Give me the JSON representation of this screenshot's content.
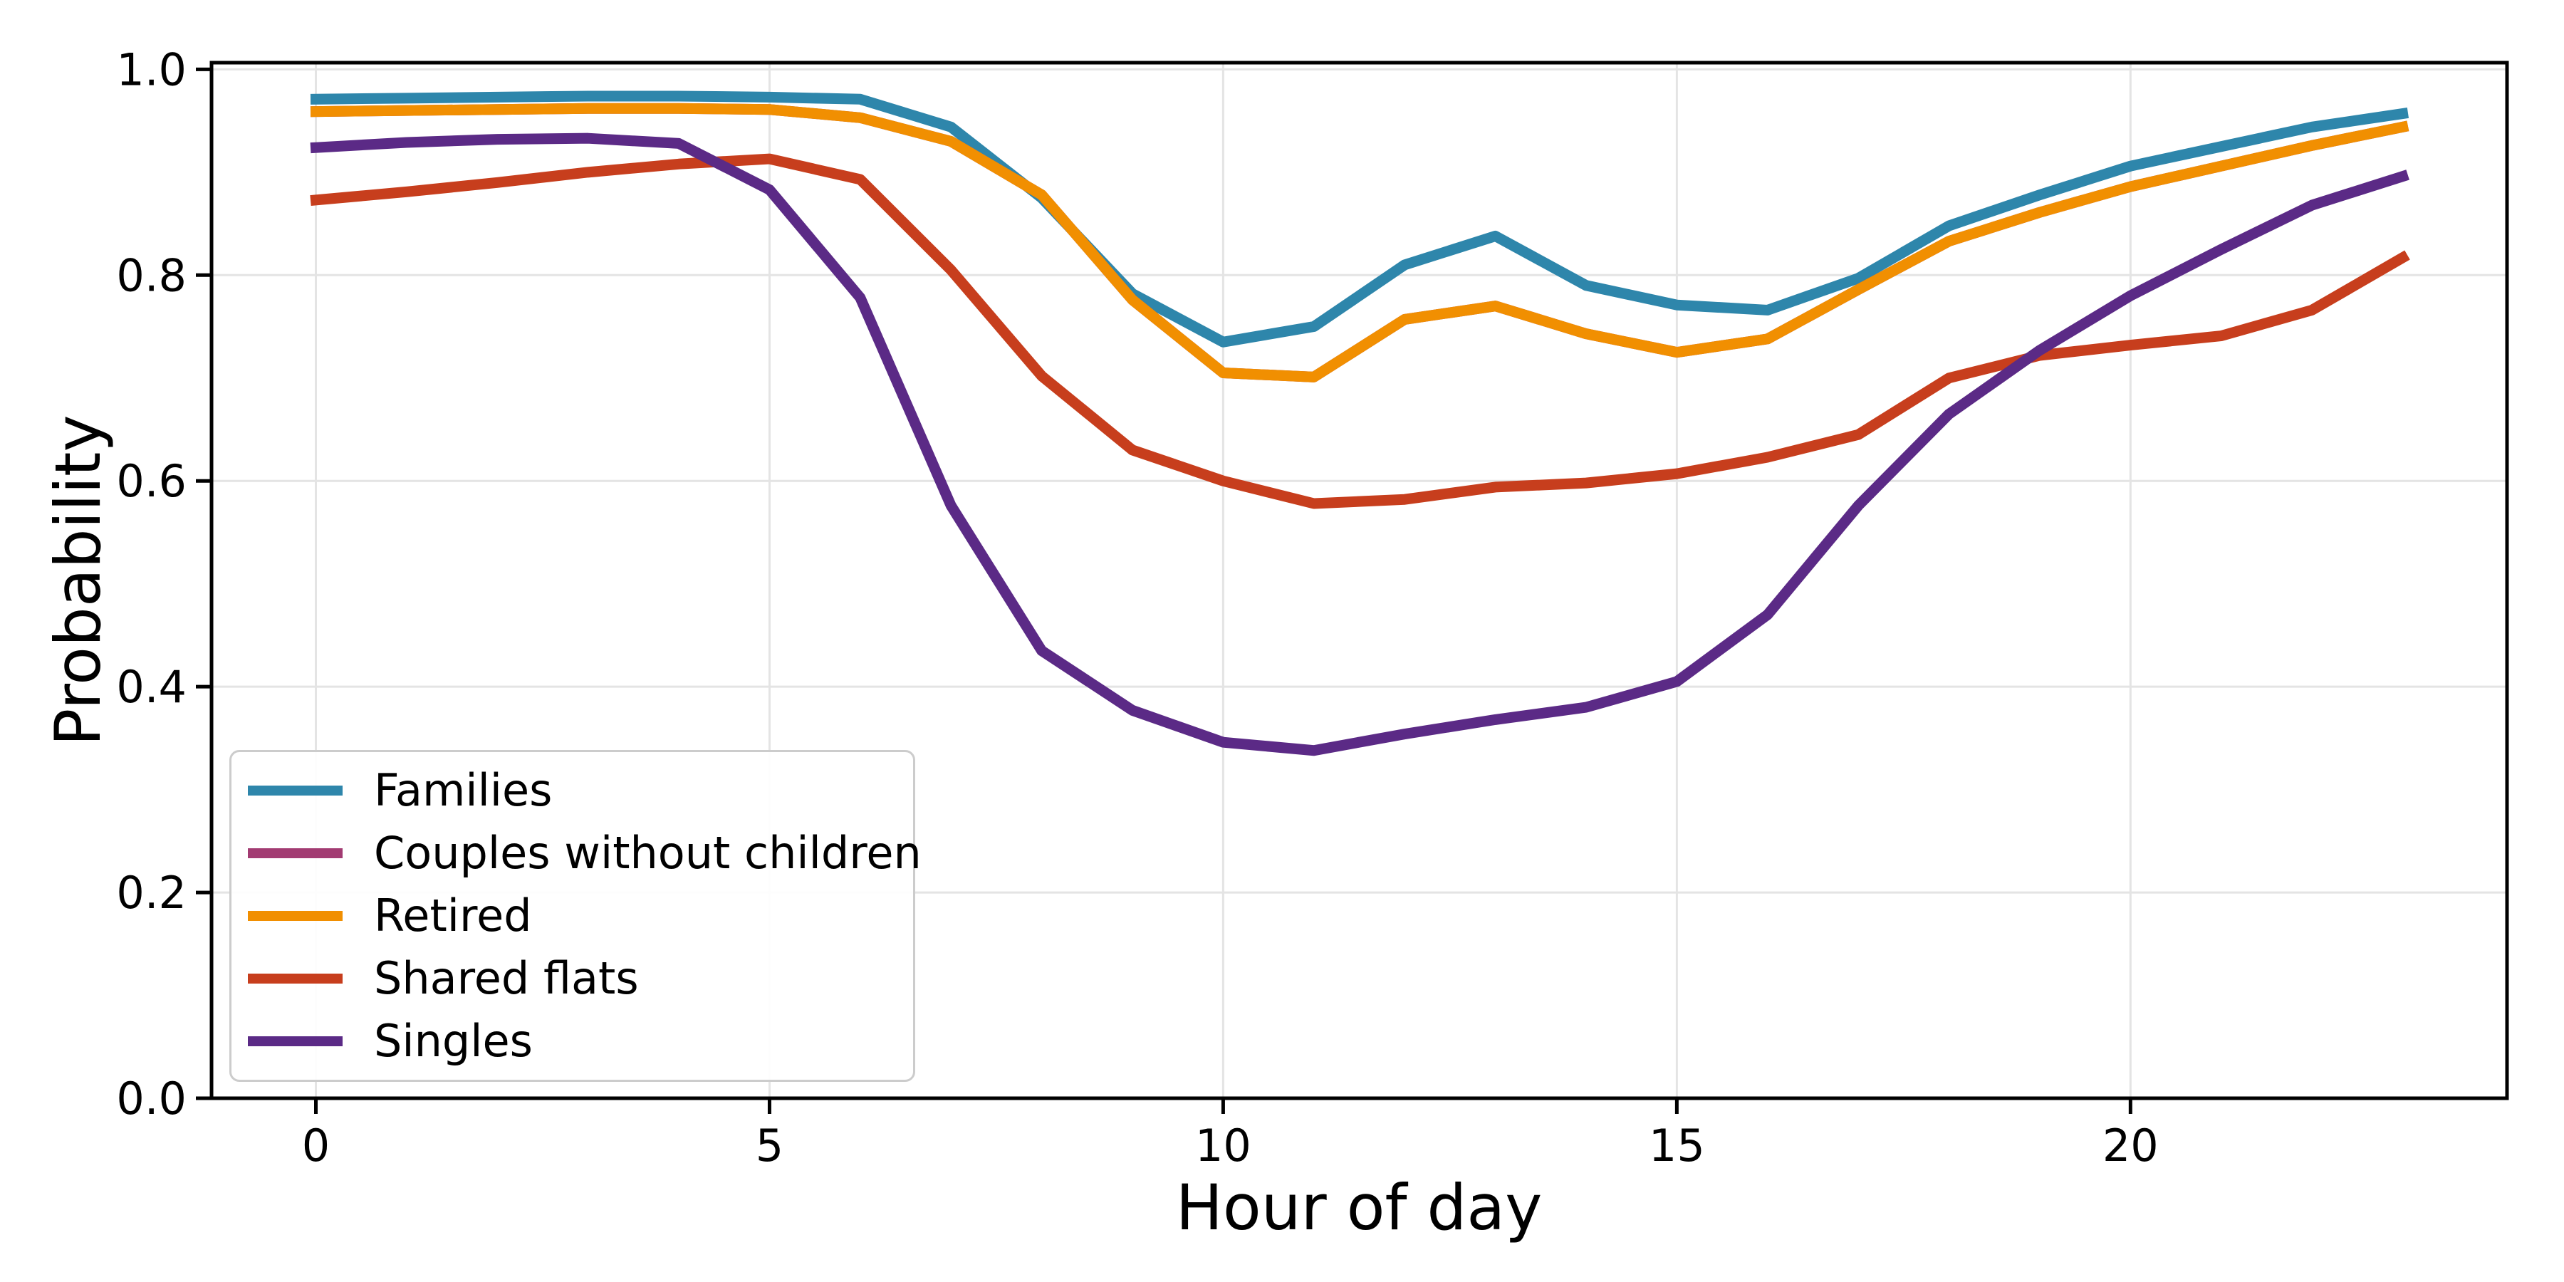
{
  "figure": {
    "background": "#ffffff"
  },
  "chart_data": {
    "type": "line",
    "title": "",
    "xlabel": "Hour of day",
    "ylabel": "Probability",
    "x": [
      0,
      1,
      2,
      3,
      4,
      5,
      6,
      7,
      8,
      9,
      10,
      11,
      12,
      13,
      14,
      15,
      16,
      17,
      18,
      19,
      20,
      21,
      22,
      23
    ],
    "xlim": [
      -1.15,
      24.15
    ],
    "ylim": [
      0,
      1.0065
    ],
    "xticks": [
      {
        "value": 0,
        "label": "0"
      },
      {
        "value": 5,
        "label": "5"
      },
      {
        "value": 10,
        "label": "10"
      },
      {
        "value": 15,
        "label": "15"
      },
      {
        "value": 20,
        "label": "20"
      }
    ],
    "yticks": [
      {
        "value": 0.0,
        "label": "0.0"
      },
      {
        "value": 0.2,
        "label": "0.2"
      },
      {
        "value": 0.4,
        "label": "0.4"
      },
      {
        "value": 0.6,
        "label": "0.6"
      },
      {
        "value": 0.8,
        "label": "0.8"
      },
      {
        "value": 1.0,
        "label": "1.0"
      }
    ],
    "grid": true,
    "grid_color": "#e4e4e4",
    "spine_color": "#000000",
    "legend_position": "lower left",
    "line_width": 15,
    "series": [
      {
        "name": "Families",
        "color": "#2E86AB",
        "values": [
          0.971,
          0.972,
          0.973,
          0.974,
          0.974,
          0.973,
          0.971,
          0.944,
          0.875,
          0.782,
          0.735,
          0.75,
          0.81,
          0.838,
          0.79,
          0.771,
          0.766,
          0.797,
          0.848,
          0.878,
          0.906,
          0.925,
          0.944,
          0.957
        ]
      },
      {
        "name": "Couples without children",
        "color": "#A23B72",
        "values": [
          0.959,
          0.96,
          0.961,
          0.962,
          0.962,
          0.961,
          0.953,
          0.93,
          0.878,
          0.776,
          0.705,
          0.701,
          0.757,
          0.77,
          0.743,
          0.725,
          0.738,
          0.786,
          0.833,
          0.861,
          0.886,
          0.906,
          0.926,
          0.944
        ]
      },
      {
        "name": "Retired",
        "color": "#F18F01",
        "values": [
          0.959,
          0.96,
          0.961,
          0.962,
          0.962,
          0.961,
          0.953,
          0.93,
          0.878,
          0.776,
          0.705,
          0.701,
          0.757,
          0.77,
          0.743,
          0.725,
          0.738,
          0.786,
          0.833,
          0.861,
          0.886,
          0.906,
          0.926,
          0.944
        ]
      },
      {
        "name": "Shared flats",
        "color": "#C73E1D",
        "values": [
          0.873,
          0.881,
          0.89,
          0.9,
          0.908,
          0.913,
          0.893,
          0.805,
          0.702,
          0.63,
          0.6,
          0.578,
          0.582,
          0.594,
          0.598,
          0.607,
          0.623,
          0.645,
          0.7,
          0.722,
          0.732,
          0.741,
          0.766,
          0.817
        ]
      },
      {
        "name": "Singles",
        "color": "#5B2A86",
        "values": [
          0.924,
          0.929,
          0.932,
          0.933,
          0.928,
          0.883,
          0.778,
          0.576,
          0.435,
          0.377,
          0.346,
          0.338,
          0.354,
          0.368,
          0.38,
          0.405,
          0.47,
          0.576,
          0.665,
          0.727,
          0.78,
          0.825,
          0.868,
          0.896
        ]
      }
    ]
  },
  "legend": {
    "items": [
      "Families",
      "Couples without children",
      "Retired",
      "Shared flats",
      "Singles"
    ]
  }
}
